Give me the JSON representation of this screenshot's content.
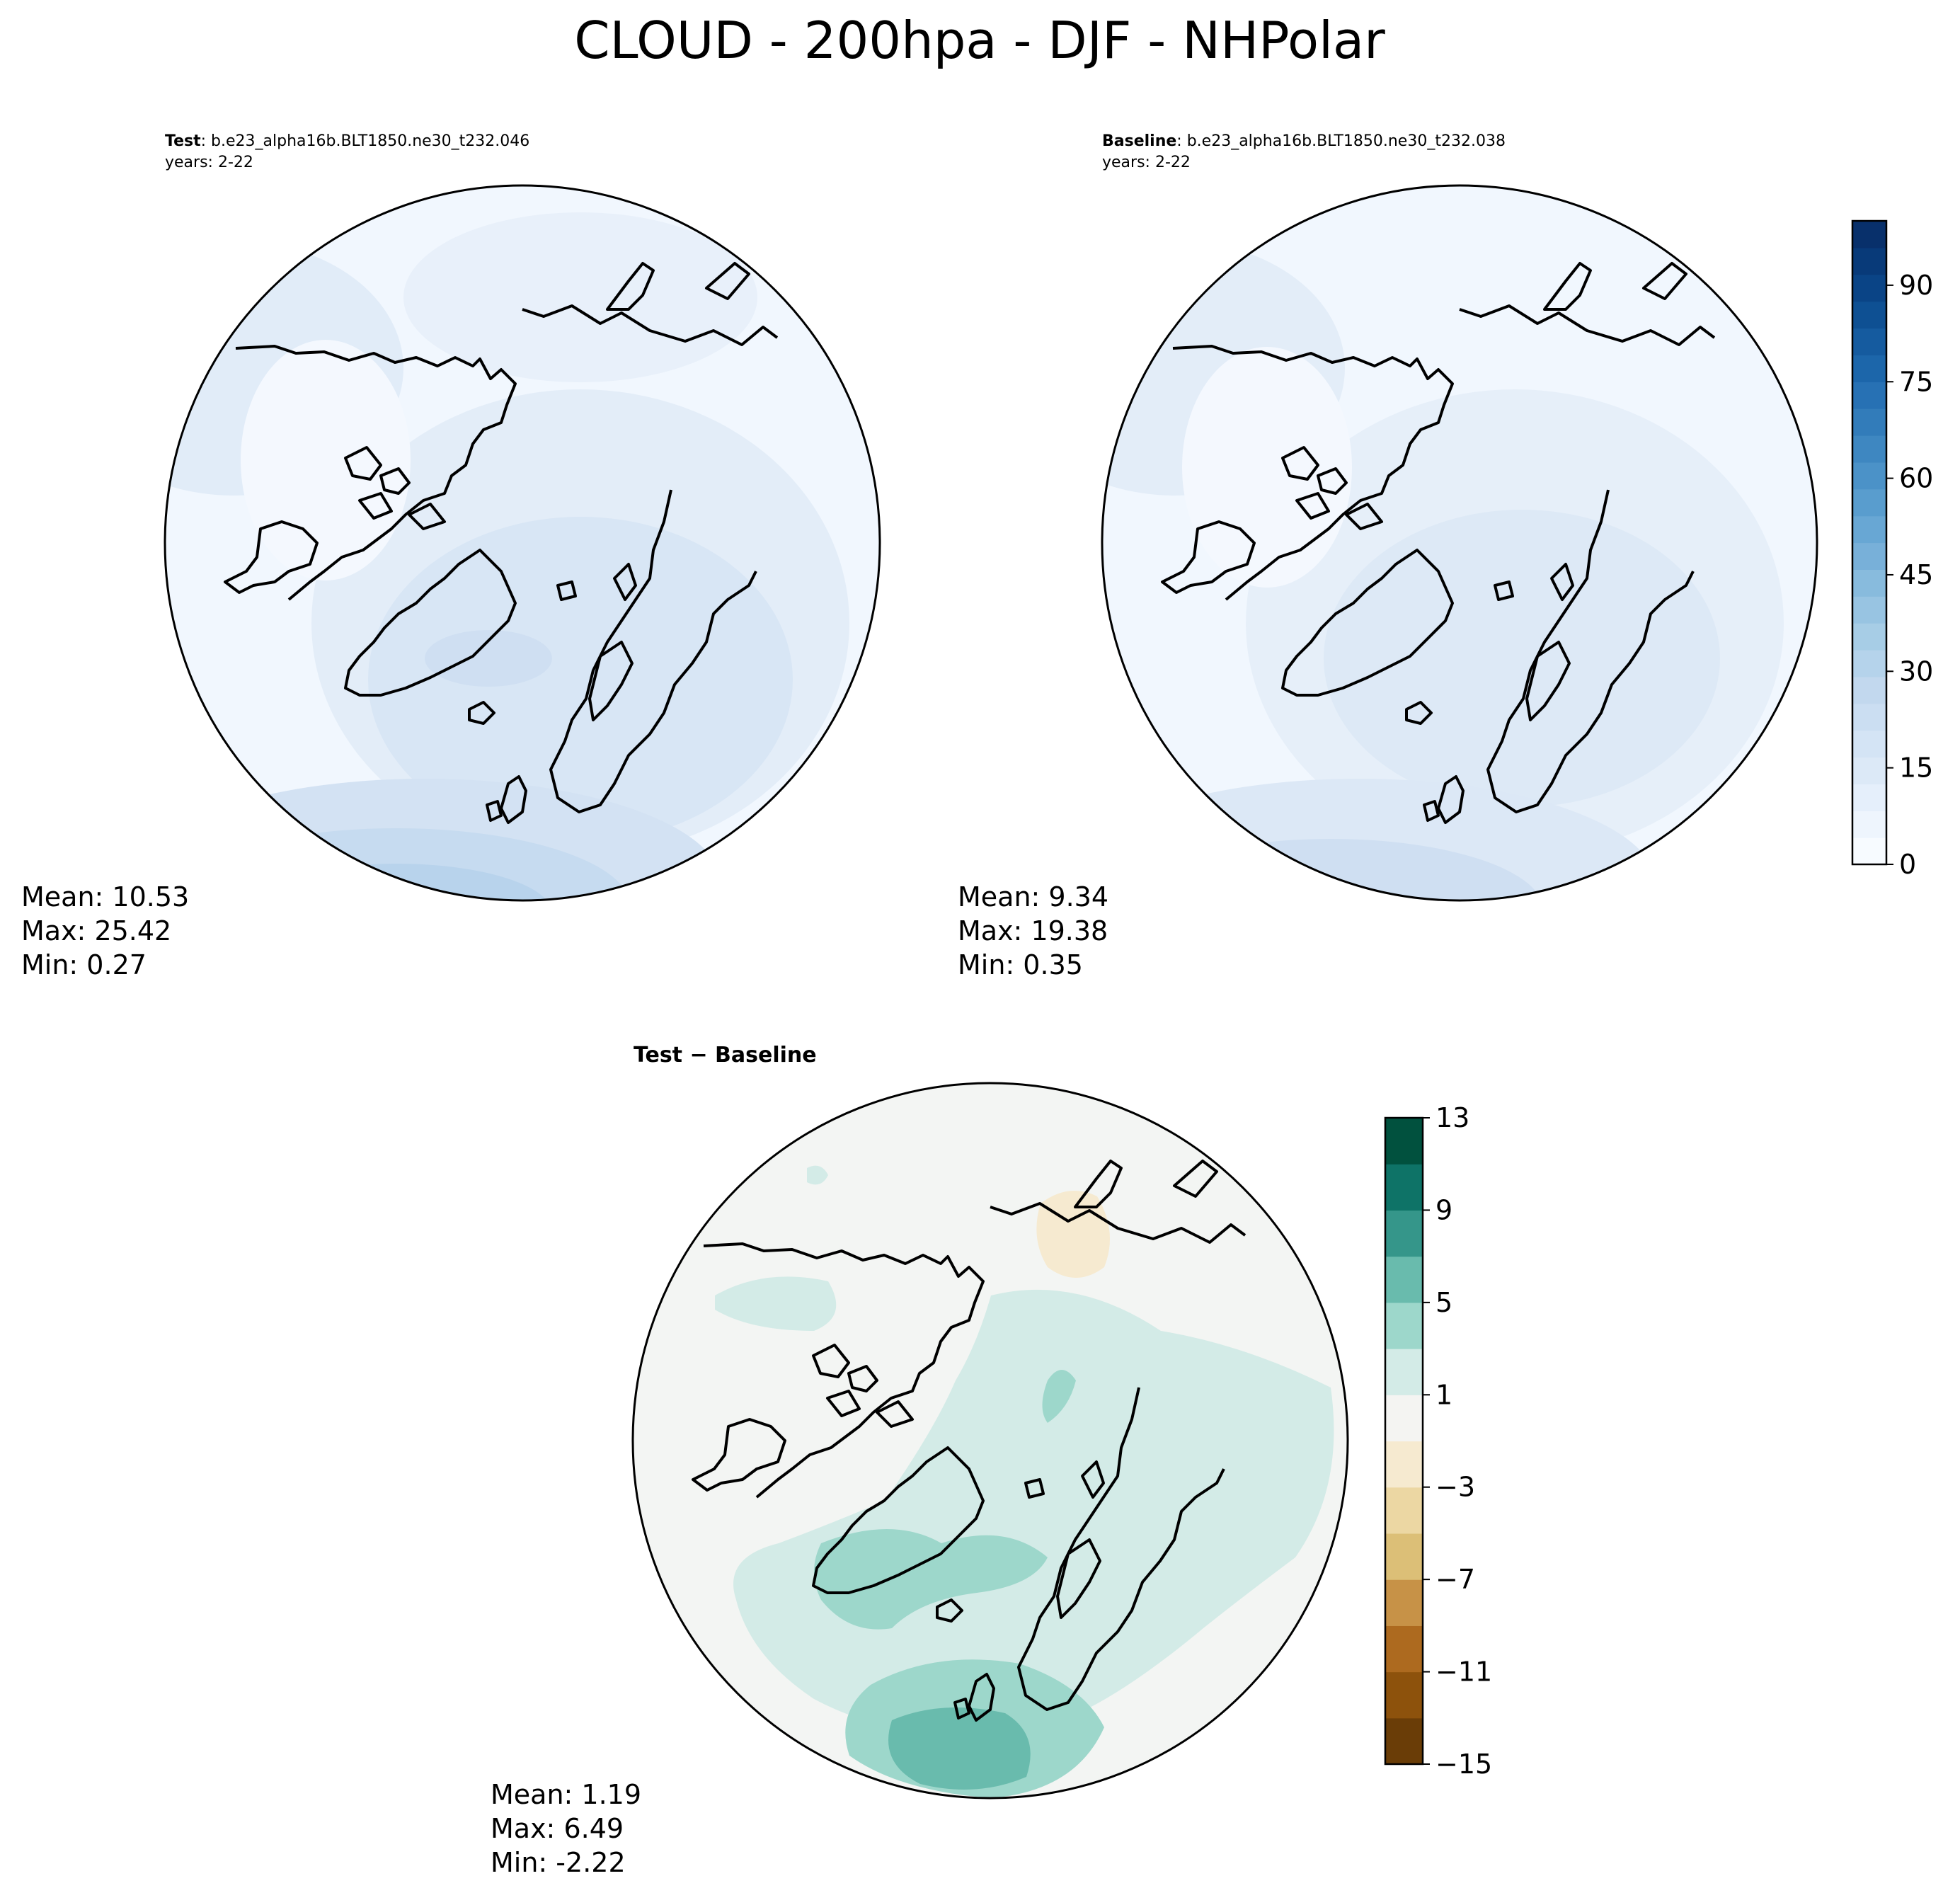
{
  "figure": {
    "title": "CLOUD - 200hpa - DJF - NHPolar"
  },
  "panels": {
    "test": {
      "label_bold": "Test",
      "label_rest": ": b.e23_alpha16b.BLT1850.ne30_t232.046",
      "years": "years: 2-22",
      "stats": {
        "mean": "Mean: 10.53",
        "max": "Max: 25.42",
        "min": "Min:  0.27"
      }
    },
    "baseline": {
      "label_bold": "Baseline",
      "label_rest": ": b.e23_alpha16b.BLT1850.ne30_t232.038",
      "years": "years: 2-22",
      "stats": {
        "mean": "Mean:  9.34",
        "max": "Max: 19.38",
        "min": "Min:  0.35"
      }
    },
    "diff": {
      "label": "Test − Baseline",
      "stats": {
        "mean": "Mean:  1.19",
        "max": "Max:  6.49",
        "min": "Min: -2.22"
      }
    }
  },
  "colorbars": {
    "main": {
      "ticks": [
        "0",
        "15",
        "30",
        "45",
        "60",
        "75",
        "90"
      ],
      "colors": [
        "#f7fbff",
        "#eef5fd",
        "#e5effb",
        "#dce9f7",
        "#d4e4f5",
        "#cbdef2",
        "#c2d8ee",
        "#b5d3eb",
        "#a7cde6",
        "#98c4e2",
        "#88bbdd",
        "#78b0d9",
        "#68a7d4",
        "#599dce",
        "#4b92c8",
        "#3e87c1",
        "#327cba",
        "#2771b4",
        "#1c66aa",
        "#155b9f",
        "#0e5093",
        "#0a4486",
        "#083a79",
        "#08306b"
      ]
    },
    "diff": {
      "ticks": [
        "13",
        "9",
        "5",
        "1",
        "−3",
        "−7",
        "−11",
        "−15"
      ],
      "colors": [
        "#6a3d07",
        "#8d520c",
        "#ad6a1f",
        "#c79247",
        "#dcbf77",
        "#ecd7a3",
        "#f6ead0",
        "#f4f4f2",
        "#d3ebe7",
        "#9dd7cb",
        "#69bbad",
        "#35968a",
        "#0e7367",
        "#01513e"
      ]
    }
  },
  "map_colors": {
    "land_outline": "#000000",
    "test_fill": "#e6eff9",
    "baseline_fill": "#e8f1fa",
    "diff_background": "#f3f5f3",
    "diff_positive_light": "#d3ebe7",
    "diff_positive_mid": "#9dd7cb",
    "diff_positive_strong": "#69bbad",
    "diff_negative_light": "#f6ead0"
  }
}
